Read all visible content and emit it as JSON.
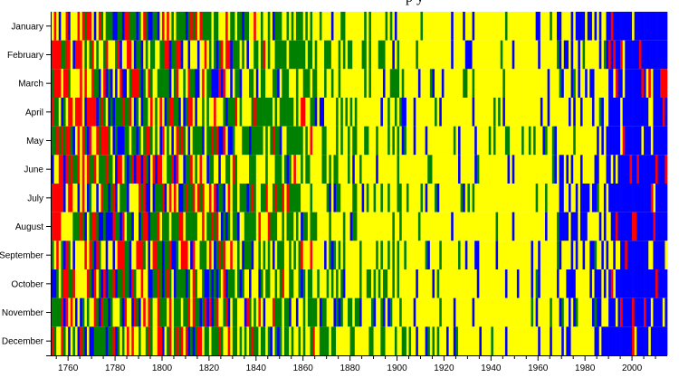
{
  "chart_data": {
    "type": "heatmap",
    "title_fragment": "p   y",
    "months": [
      "January",
      "February",
      "March",
      "April",
      "May",
      "June",
      "July",
      "August",
      "September",
      "October",
      "November",
      "December"
    ],
    "x_ticks": [
      1760,
      1780,
      1800,
      1820,
      1840,
      1860,
      1880,
      1900,
      1920,
      1940,
      1960,
      1980,
      2000
    ],
    "xlim": [
      1753,
      2015
    ],
    "color_scale": {
      "blue": "#0000ff",
      "yellow": "#ffff00",
      "green": "#008000",
      "red": "#ff0000"
    },
    "eras": [
      {
        "from": 1753,
        "to": 1775,
        "weights": {
          "red": 0.35,
          "green": 0.25,
          "yellow": 0.25,
          "blue": 0.15
        }
      },
      {
        "from": 1775,
        "to": 1800,
        "weights": {
          "red": 0.25,
          "green": 0.3,
          "yellow": 0.25,
          "blue": 0.2
        }
      },
      {
        "from": 1800,
        "to": 1830,
        "weights": {
          "red": 0.2,
          "green": 0.35,
          "yellow": 0.3,
          "blue": 0.15
        }
      },
      {
        "from": 1830,
        "to": 1865,
        "weights": {
          "red": 0.05,
          "green": 0.55,
          "yellow": 0.35,
          "blue": 0.05
        }
      },
      {
        "from": 1865,
        "to": 1905,
        "weights": {
          "red": 0.0,
          "green": 0.3,
          "yellow": 0.65,
          "blue": 0.05
        }
      },
      {
        "from": 1905,
        "to": 1970,
        "weights": {
          "red": 0.0,
          "green": 0.05,
          "yellow": 0.85,
          "blue": 0.1
        }
      },
      {
        "from": 1970,
        "to": 1990,
        "weights": {
          "red": 0.0,
          "green": 0.02,
          "yellow": 0.6,
          "blue": 0.38
        }
      },
      {
        "from": 1990,
        "to": 2015,
        "weights": {
          "red": 0.08,
          "green": 0.0,
          "yellow": 0.1,
          "blue": 0.82
        }
      }
    ]
  }
}
